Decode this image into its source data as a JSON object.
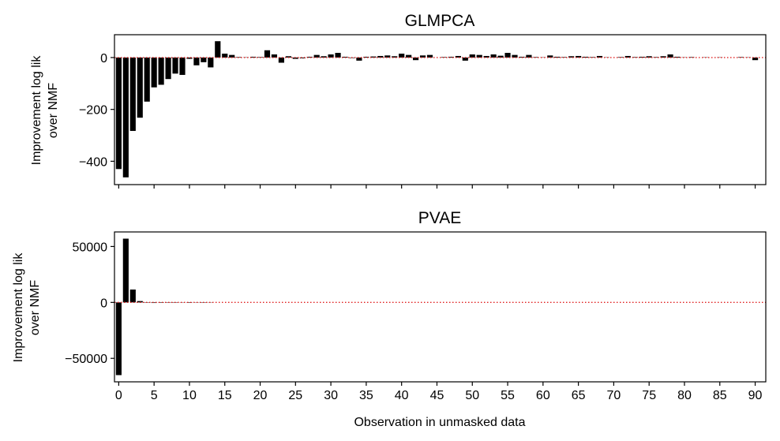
{
  "chart_data": [
    {
      "type": "bar",
      "title": "GLMPCA",
      "ylabel": [
        "Improvement log lik",
        "over NMF"
      ],
      "ylim": [
        -490,
        88
      ],
      "yticks": [
        0,
        -200,
        -400
      ],
      "ytick_labels": [
        "0",
        "−200",
        "−400"
      ],
      "xlim": [
        -0.6,
        91.5
      ],
      "baseline": 0,
      "baseline_color": "#e02020",
      "bar_color": "#000000",
      "values": [
        -430,
        -462,
        -283,
        -232,
        -170,
        -115,
        -105,
        -83,
        -62,
        -67,
        -5,
        -30,
        -18,
        -38,
        63,
        15,
        10,
        2,
        1,
        3,
        2,
        28,
        12,
        -20,
        5,
        -5,
        -3,
        3,
        10,
        5,
        12,
        18,
        3,
        -2,
        -12,
        3,
        4,
        6,
        8,
        5,
        15,
        10,
        -10,
        8,
        10,
        0,
        2,
        3,
        6,
        -12,
        12,
        10,
        6,
        12,
        7,
        18,
        10,
        3,
        10,
        2,
        1,
        8,
        3,
        2,
        5,
        6,
        3,
        2,
        6,
        1,
        0,
        2,
        6,
        2,
        3,
        5,
        2,
        5,
        12,
        3,
        1,
        2,
        0,
        1,
        0,
        1,
        0,
        0,
        2,
        1,
        -10
      ],
      "xlabel": "",
      "show_xtick_labels": false
    },
    {
      "type": "bar",
      "title": "PVAE",
      "ylabel": [
        "Improvement log lik",
        "over NMF"
      ],
      "ylim": [
        -71000,
        63000
      ],
      "yticks": [
        50000,
        0,
        -50000
      ],
      "ytick_labels": [
        "50000",
        "0",
        "−50000"
      ],
      "xlim": [
        -0.6,
        91.5
      ],
      "baseline": 0,
      "baseline_color": "#e02020",
      "bar_color": "#000000",
      "values": [
        -65000,
        57000,
        11500,
        1200,
        -300,
        -500,
        -400,
        -300,
        -300,
        -200,
        -400,
        -200,
        -300,
        -200,
        0,
        0,
        0,
        0,
        0,
        0,
        0,
        0,
        0,
        0,
        0,
        0,
        0,
        0,
        0,
        0,
        0,
        0,
        0,
        0,
        0,
        0,
        0,
        0,
        0,
        0,
        0,
        0,
        0,
        0,
        0,
        0,
        0,
        0,
        0,
        0,
        0,
        0,
        0,
        0,
        0,
        0,
        0,
        0,
        0,
        0,
        0,
        0,
        0,
        0,
        0,
        0,
        0,
        0,
        0,
        0,
        0,
        0,
        0,
        0,
        0,
        0,
        0,
        0,
        0,
        0,
        0,
        0,
        0,
        0,
        0,
        0,
        0,
        0,
        0,
        0,
        0
      ],
      "xlabel": "Observation in unmasked data",
      "show_xtick_labels": true
    }
  ],
  "xticks": [
    0,
    5,
    10,
    15,
    20,
    25,
    30,
    35,
    40,
    45,
    50,
    55,
    60,
    65,
    70,
    75,
    80,
    85,
    90
  ],
  "xtick_labels": [
    "0",
    "5",
    "10",
    "15",
    "20",
    "25",
    "30",
    "35",
    "40",
    "45",
    "50",
    "55",
    "60",
    "65",
    "70",
    "75",
    "80",
    "85",
    "90"
  ]
}
